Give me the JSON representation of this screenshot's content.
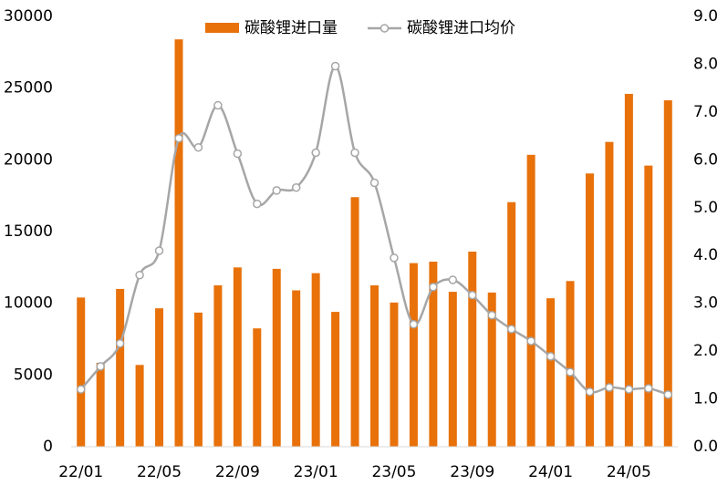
{
  "chart_data": {
    "type": "bar-line",
    "categories": [
      "22/01",
      null,
      null,
      null,
      "22/05",
      null,
      null,
      null,
      "22/09",
      null,
      null,
      null,
      "23/01",
      null,
      null,
      null,
      "23/05",
      null,
      null,
      null,
      "23/09",
      null,
      null,
      null,
      "24/01",
      null,
      null,
      null,
      "24/05",
      null,
      null
    ],
    "series": [
      {
        "name": "碳酸锂进口量",
        "type": "bar",
        "color": "#e8710a",
        "axis": "y",
        "values": [
          10400,
          5850,
          11000,
          5700,
          9650,
          28400,
          9350,
          11250,
          12500,
          8250,
          12400,
          10900,
          12100,
          9400,
          17400,
          11250,
          10050,
          12800,
          12900,
          10800,
          13600,
          10750,
          17050,
          20350,
          10350,
          11550,
          19050,
          21250,
          24600,
          19600,
          24150
        ]
      },
      {
        "name": "碳酸锂进口均价",
        "type": "line",
        "color": "#a6a6a6",
        "axis": "y2",
        "values": [
          1.2,
          1.68,
          2.16,
          3.59,
          4.1,
          6.45,
          6.26,
          7.14,
          6.13,
          5.08,
          5.36,
          5.42,
          6.15,
          7.96,
          6.15,
          5.52,
          3.95,
          2.56,
          3.34,
          3.49,
          3.17,
          2.75,
          2.46,
          2.21,
          1.89,
          1.56,
          1.15,
          1.24,
          1.2,
          1.22,
          1.09
        ]
      }
    ],
    "ylim": [
      0,
      30000
    ],
    "yticks": [
      0,
      5000,
      10000,
      15000,
      20000,
      25000,
      30000
    ],
    "y2lim": [
      0,
      9
    ],
    "y2ticks": [
      {
        "value": 0,
        "label": "0.0"
      },
      {
        "value": 1,
        "label": "1.0"
      },
      {
        "value": 2,
        "label": "2.0"
      },
      {
        "value": 3,
        "label": "3.0"
      },
      {
        "value": 4,
        "label": "4.0"
      },
      {
        "value": 5,
        "label": "5.0"
      },
      {
        "value": 6,
        "label": "6.0"
      },
      {
        "value": 7,
        "label": "7.0"
      },
      {
        "value": 8,
        "label": "8.0"
      },
      {
        "value": 9,
        "label": "9.0"
      }
    ],
    "legend": "top",
    "grid": false
  }
}
